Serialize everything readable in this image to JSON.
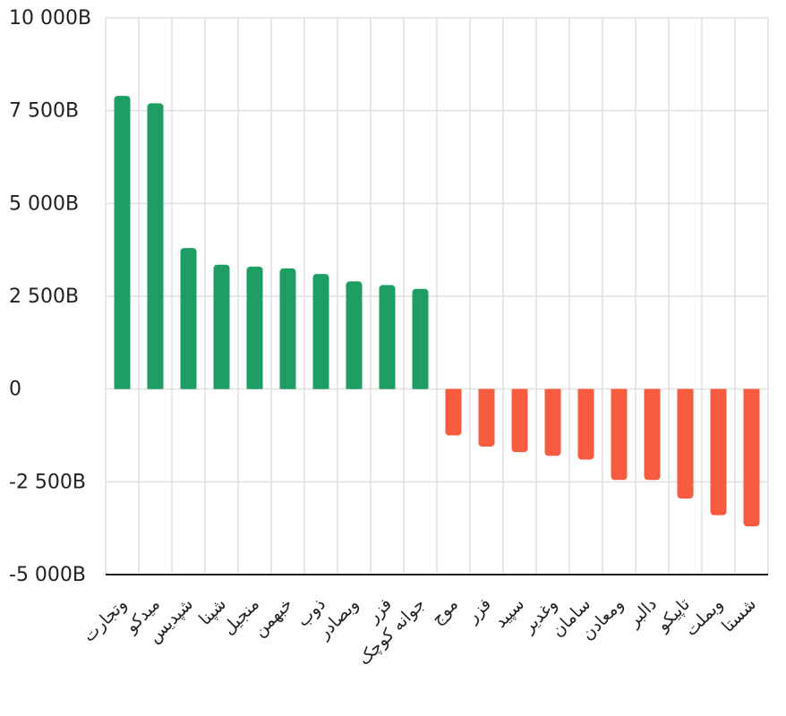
{
  "chart_data": {
    "type": "bar",
    "title": "",
    "xlabel": "",
    "ylabel": "",
    "ylim": [
      -5000,
      10000
    ],
    "yticks": [
      {
        "value": 10000,
        "label": "10 000B"
      },
      {
        "value": 7500,
        "label": "7 500B"
      },
      {
        "value": 5000,
        "label": "5 000B"
      },
      {
        "value": 2500,
        "label": "2 500B"
      },
      {
        "value": 0,
        "label": "0"
      },
      {
        "value": -2500,
        "label": "-2 500B"
      },
      {
        "value": -5000,
        "label": "-5 000B"
      }
    ],
    "grid": true,
    "categories": [
      "وتجارت",
      "میدکو",
      "شپدیس",
      "شپنا",
      "منجیل",
      "خبهمن",
      "ذوب",
      "وبصادر",
      "فزر",
      "جوانه کوچک",
      "موج",
      "فزر",
      "سپید",
      "وغدیر",
      "سامان",
      "ومعادن",
      "دالبر",
      "تاپیکو",
      "وبملت",
      "شستا"
    ],
    "values": [
      7900,
      7700,
      3800,
      3350,
      3300,
      3250,
      3100,
      2900,
      2800,
      2700,
      -1250,
      -1550,
      -1700,
      -1800,
      -1900,
      -2450,
      -2450,
      -2950,
      -3400,
      -3700
    ],
    "colors": {
      "positive": "#1f9e63",
      "negative": "#f85c40"
    }
  }
}
